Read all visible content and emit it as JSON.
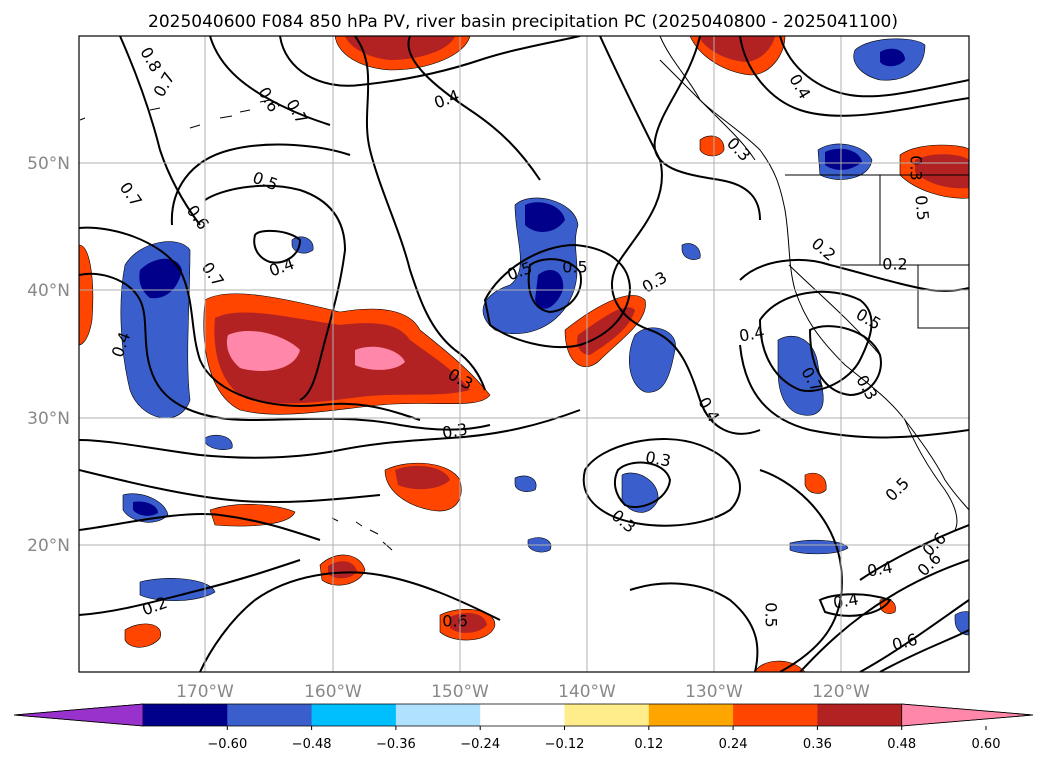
{
  "title": "2025040600 F084 850 hPa PV, river basin precipitation PC (2025040800 - 2025041100)",
  "map": {
    "lon_labels": [
      "170°W",
      "160°W",
      "150°W",
      "140°W",
      "130°W",
      "120°W"
    ],
    "lat_labels": [
      "50°N",
      "40°N",
      "30°N",
      "20°N"
    ],
    "grid": true
  },
  "colorbar": {
    "tick_labels": [
      "−0.60",
      "−0.48",
      "−0.36",
      "−0.24",
      "−0.12",
      "0.12",
      "0.24",
      "0.36",
      "0.48",
      "0.60"
    ],
    "colors": [
      "#9932cc",
      "#00008b",
      "#3a5fcd",
      "#00bfff",
      "#b0e2ff",
      "#ffffff",
      "#ffec8b",
      "#ffa500",
      "#ff4500",
      "#b22222",
      "#ff88aa"
    ],
    "extend": "both"
  },
  "contour_labels": [
    "0.8",
    "0.7",
    "0.6",
    "0.7",
    "0.4",
    "0.5",
    "0.7",
    "0.6",
    "0.7",
    "0.4",
    "0.4",
    "0.5",
    "0.3",
    "0.3",
    "0.3",
    "0.5",
    "0.4",
    "0.4",
    "0.2",
    "0.2",
    "0.3",
    "0.3",
    "0.6",
    "0.6",
    "0.5",
    "0.5",
    "0.7",
    "0.4",
    "0.5",
    "0.3",
    "0.3",
    "0.6",
    "0.5",
    "0.6",
    "0.4",
    "0.2",
    "0.3",
    "0.4"
  ]
}
